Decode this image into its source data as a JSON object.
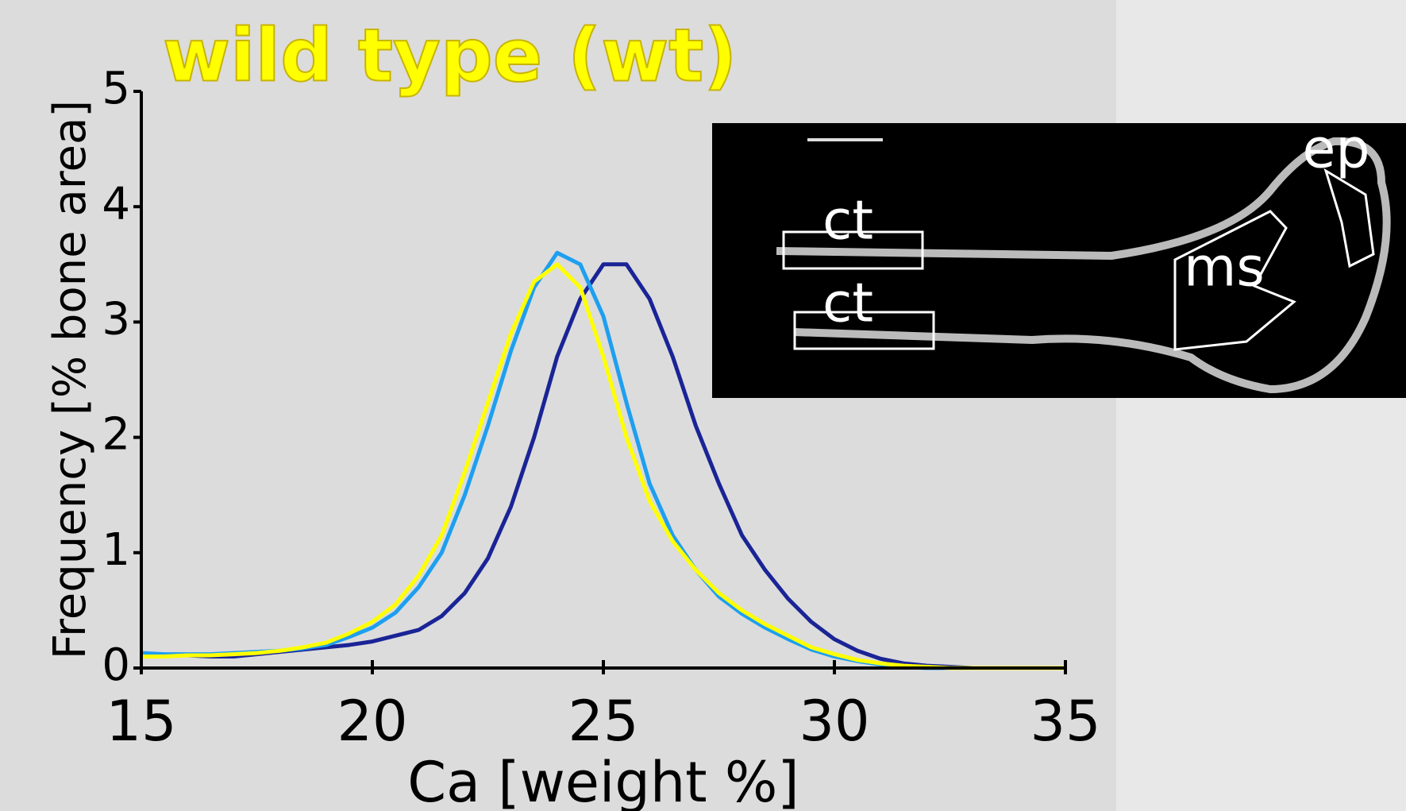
{
  "chart_data": {
    "type": "line",
    "title": "wild type (wt)",
    "x_label": "Ca [weight %]",
    "y_label": "Frequency [% bone area]",
    "x": [
      15,
      15.5,
      16,
      16.5,
      17,
      17.5,
      18,
      18.5,
      19,
      19.5,
      20,
      20.5,
      21,
      21.5,
      22,
      22.5,
      23,
      23.5,
      24,
      24.5,
      25,
      25.5,
      26,
      26.5,
      27,
      27.5,
      28,
      28.5,
      29,
      29.5,
      30,
      30.5,
      31,
      31.5,
      32,
      32.5,
      33,
      33.5,
      34,
      34.5,
      35
    ],
    "series": [
      {
        "color": "#1a2496",
        "values": [
          0.12,
          0.11,
          0.11,
          0.1,
          0.1,
          0.12,
          0.14,
          0.16,
          0.18,
          0.2,
          0.23,
          0.28,
          0.33,
          0.45,
          0.65,
          0.95,
          1.4,
          2.0,
          2.7,
          3.2,
          3.5,
          3.5,
          3.2,
          2.7,
          2.1,
          1.6,
          1.15,
          0.85,
          0.6,
          0.4,
          0.25,
          0.15,
          0.08,
          0.04,
          0.02,
          0.01,
          0,
          0,
          0,
          0,
          0
        ]
      },
      {
        "color": "#1e9ff0",
        "values": [
          0.13,
          0.12,
          0.12,
          0.12,
          0.13,
          0.14,
          0.15,
          0.17,
          0.2,
          0.27,
          0.35,
          0.48,
          0.7,
          1.0,
          1.5,
          2.1,
          2.75,
          3.3,
          3.6,
          3.5,
          3.05,
          2.3,
          1.6,
          1.15,
          0.85,
          0.62,
          0.47,
          0.35,
          0.25,
          0.16,
          0.1,
          0.06,
          0.03,
          0.01,
          0,
          0,
          0,
          0,
          0,
          0,
          0
        ]
      },
      {
        "color": "#ffff00",
        "values": [
          0.1,
          0.1,
          0.11,
          0.11,
          0.12,
          0.13,
          0.15,
          0.18,
          0.22,
          0.3,
          0.4,
          0.55,
          0.8,
          1.15,
          1.7,
          2.3,
          2.9,
          3.35,
          3.5,
          3.3,
          2.7,
          2.0,
          1.45,
          1.1,
          0.85,
          0.65,
          0.5,
          0.38,
          0.28,
          0.18,
          0.12,
          0.07,
          0.04,
          0.02,
          0.01,
          0,
          0,
          0,
          0,
          0,
          0
        ]
      }
    ],
    "xlim": [
      15,
      35
    ],
    "xticks": [
      15,
      20,
      25,
      30,
      35
    ],
    "ylim": [
      0,
      5
    ],
    "yticks": [
      0,
      1,
      2,
      3,
      4,
      5
    ],
    "inset_labels": [
      "ct",
      "ct",
      "ms",
      "ep"
    ]
  }
}
